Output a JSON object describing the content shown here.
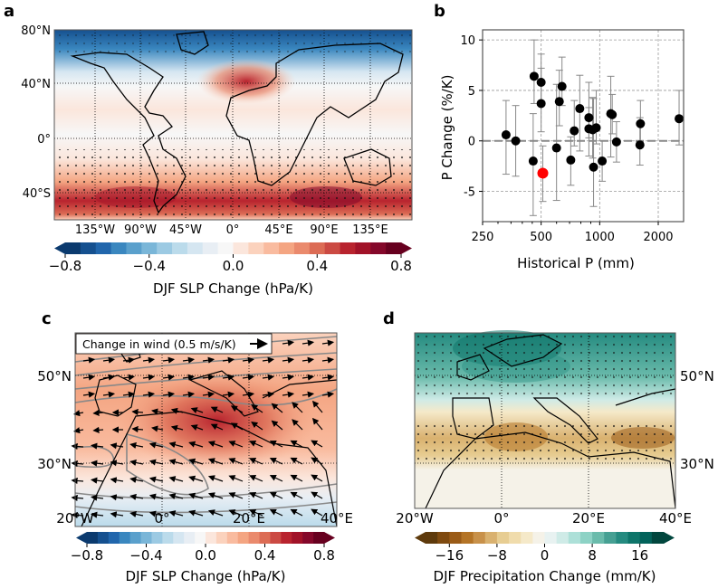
{
  "chart_data": [
    {
      "panel": "a",
      "type": "heatmap",
      "subtype": "global map, filled contours with stippling",
      "xticks": [
        "135°W",
        "90°W",
        "45°W",
        "0°",
        "45°E",
        "90°E",
        "135°E"
      ],
      "yticks": [
        "80°N",
        "40°N",
        "0°",
        "40°S"
      ],
      "colorbar": {
        "label": "DJF SLP Change (hPa/K)",
        "ticks": [
          "−0.8",
          "−0.4",
          "0.0",
          "0.4",
          "0.8"
        ],
        "range": [
          -0.8,
          0.8
        ],
        "levels": 22,
        "colormap": [
          "#0b3a6e",
          "#15508f",
          "#2166ac",
          "#3a87bf",
          "#5aa0cc",
          "#7ab6d8",
          "#9ccae3",
          "#bbdbeb",
          "#d5e6f1",
          "#e8eef4",
          "#f7f7f7",
          "#fbe6dc",
          "#fbd2bd",
          "#f9bb9f",
          "#f4a582",
          "#ea8a6d",
          "#dc6c55",
          "#cb4a43",
          "#b8232e",
          "#a11228",
          "#84082a",
          "#67001f"
        ]
      }
    },
    {
      "panel": "b",
      "type": "scatter",
      "xlabel": "Historical P (mm)",
      "ylabel": "P Change (%/K)",
      "xscale": "log",
      "xlim": [
        250,
        2700
      ],
      "ylim": [
        -8,
        11
      ],
      "xticks": [
        250,
        500,
        1000,
        2000
      ],
      "yticks": [
        10,
        5,
        0,
        -5
      ],
      "xtick_labels": [
        "250",
        "500",
        "1000",
        "2000"
      ],
      "ytick_labels": [
        "10",
        "5",
        "0",
        "-5"
      ],
      "grid": true,
      "zero_line": true,
      "points": [
        {
          "x": 330,
          "y": 0.6,
          "lo": -3.3,
          "hi": 4.0
        },
        {
          "x": 370,
          "y": 0.0,
          "lo": -3.5,
          "hi": 3.5
        },
        {
          "x": 460,
          "y": 6.4,
          "lo": 3.7,
          "hi": 10.0
        },
        {
          "x": 455,
          "y": -2.0,
          "lo": -7.4,
          "hi": 2.7
        },
        {
          "x": 500,
          "y": 5.8,
          "lo": 3.5,
          "hi": 8.6
        },
        {
          "x": 500,
          "y": 3.7,
          "lo": 0.9,
          "hi": 7.2
        },
        {
          "x": 510,
          "y": -3.2,
          "lo": -6.0,
          "hi": -0.5,
          "highlight": true
        },
        {
          "x": 600,
          "y": -0.7,
          "lo": -5.9,
          "hi": 5.6
        },
        {
          "x": 620,
          "y": 3.9,
          "lo": 1.5,
          "hi": 7.0
        },
        {
          "x": 640,
          "y": 5.4,
          "lo": 3.5,
          "hi": 8.3
        },
        {
          "x": 710,
          "y": -1.9,
          "lo": -4.4,
          "hi": 0.4
        },
        {
          "x": 740,
          "y": 1.0,
          "lo": -0.5,
          "hi": 4.0
        },
        {
          "x": 790,
          "y": 3.2,
          "lo": -1.0,
          "hi": 6.5
        },
        {
          "x": 880,
          "y": 2.3,
          "lo": 0.3,
          "hi": 5.8
        },
        {
          "x": 880,
          "y": 1.2,
          "lo": -1.5,
          "hi": 3.3
        },
        {
          "x": 920,
          "y": 1.1,
          "lo": -1.7,
          "hi": 4.3
        },
        {
          "x": 930,
          "y": -2.6,
          "lo": -6.5,
          "hi": 4.2
        },
        {
          "x": 960,
          "y": 1.3,
          "lo": -0.3,
          "hi": 5.0
        },
        {
          "x": 1030,
          "y": -2.0,
          "lo": -4.0,
          "hi": 0.0
        },
        {
          "x": 1140,
          "y": 2.7,
          "lo": -1.6,
          "hi": 6.4
        },
        {
          "x": 1160,
          "y": 2.6,
          "lo": 0.7,
          "hi": 4.6
        },
        {
          "x": 1220,
          "y": -0.1,
          "lo": -2.1,
          "hi": 1.9
        },
        {
          "x": 1620,
          "y": 1.7,
          "lo": -0.3,
          "hi": 4.0
        },
        {
          "x": 1610,
          "y": -0.4,
          "lo": -2.4,
          "hi": 2.3
        },
        {
          "x": 2560,
          "y": 2.2,
          "lo": -0.4,
          "hi": 5.0
        }
      ]
    },
    {
      "panel": "c",
      "type": "heatmap",
      "subtype": "regional map, SLP filled contours with wind vectors and grey contour lines",
      "xticks": [
        "20°W",
        "0°",
        "20°E",
        "40°E"
      ],
      "yticks": [
        "50°N",
        "30°N"
      ],
      "legend": "Change in wind (0.5 m/s/K)",
      "colorbar": {
        "label": "DJF SLP Change (hPa/K)",
        "ticks": [
          "−0.8",
          "−0.4",
          "0.0",
          "0.4",
          "0.8"
        ],
        "range": [
          -0.8,
          0.8
        ]
      }
    },
    {
      "panel": "d",
      "type": "heatmap",
      "subtype": "regional map, precipitation filled contours with stippling",
      "xticks": [
        "20°W",
        "0°",
        "20°E",
        "40°E"
      ],
      "yticks": [
        "50°N",
        "30°N"
      ],
      "colorbar": {
        "label": "DJF Precipitation Change (mm/K)",
        "ticks": [
          "−16",
          "−8",
          "0",
          "8",
          "16"
        ],
        "range": [
          -20,
          20
        ],
        "levels": 20,
        "colormap": [
          "#5e3a0c",
          "#7f4a10",
          "#9a5b17",
          "#b47426",
          "#c8914a",
          "#d9b16f",
          "#e7cd92",
          "#f0dcac",
          "#f5e9c9",
          "#f5f2e8",
          "#e8f2f1",
          "#cfebe7",
          "#ade0d8",
          "#8dd2c5",
          "#6abbab",
          "#46a093",
          "#258b80",
          "#0e756a",
          "#02625a",
          "#01463e"
        ]
      }
    }
  ],
  "labels": {
    "a": "a",
    "b": "b",
    "c": "c",
    "d": "d"
  }
}
